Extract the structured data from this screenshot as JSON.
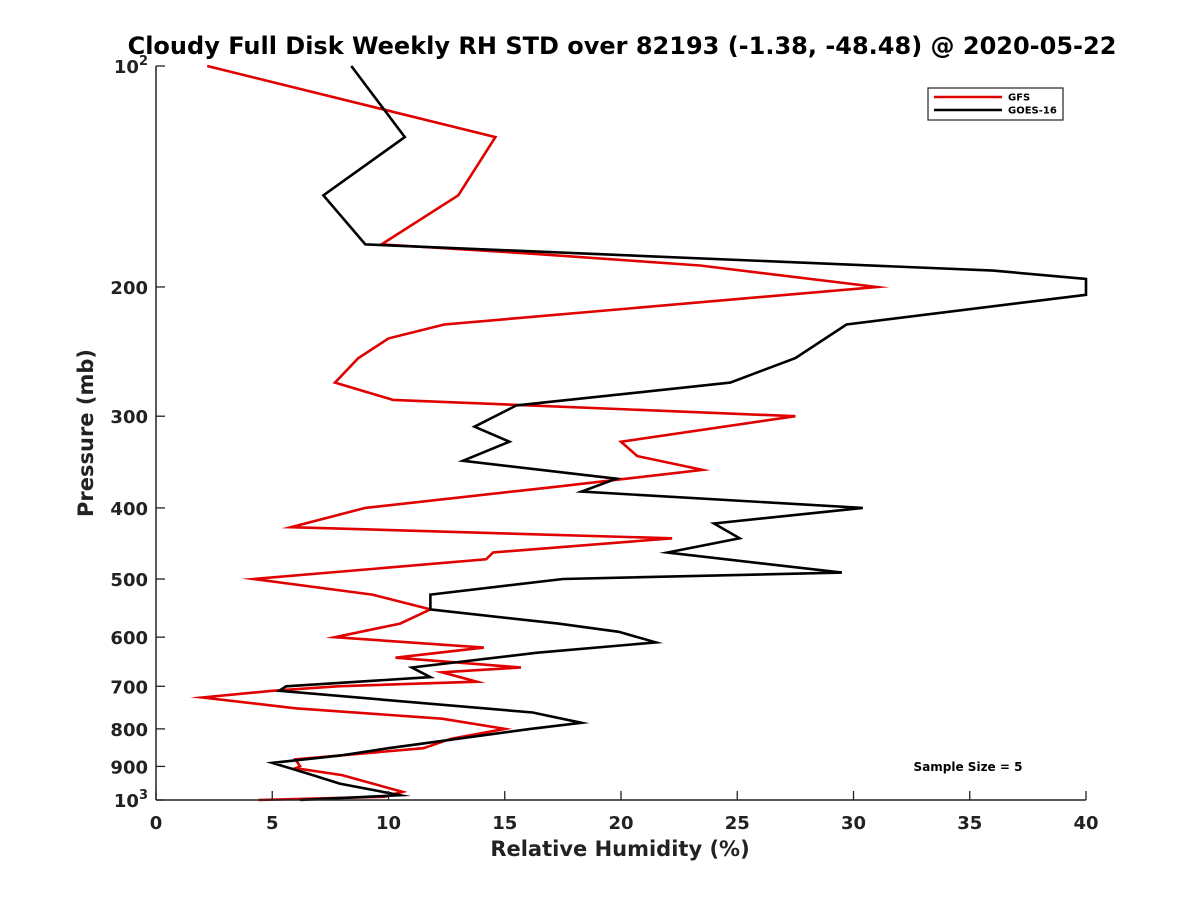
{
  "chart_data": {
    "type": "line",
    "title": "Cloudy Full Disk Weekly RH STD over 82193 (-1.38, -48.48) @ 2020-05-22",
    "xlabel": "Relative Humidity (%)",
    "ylabel": "Pressure (mb)",
    "xlim": [
      0,
      40
    ],
    "ylim": [
      100,
      1000
    ],
    "yscale": "log",
    "y_reversed": true,
    "grid": false,
    "legend_position": "top-right",
    "x_ticks": [
      "0",
      "5",
      "10",
      "15",
      "20",
      "25",
      "30",
      "35",
      "40"
    ],
    "y_ticks": [
      {
        "value": 100,
        "base": "10",
        "exp": "2"
      },
      {
        "value": 200,
        "label": "200"
      },
      {
        "value": 300,
        "label": "300"
      },
      {
        "value": 400,
        "label": "400"
      },
      {
        "value": 500,
        "label": "500"
      },
      {
        "value": 600,
        "label": "600"
      },
      {
        "value": 700,
        "label": "700"
      },
      {
        "value": 800,
        "label": "800"
      },
      {
        "value": 900,
        "label": "900"
      },
      {
        "value": 1000,
        "base": "10",
        "exp": "3"
      }
    ],
    "annotation": "Sample Size = 5",
    "series": [
      {
        "name": "GFS",
        "color": "#e00000",
        "points": [
          [
            2.2,
            100
          ],
          [
            14.6,
            125
          ],
          [
            13.0,
            150
          ],
          [
            9.7,
            175
          ],
          [
            16.0,
            180
          ],
          [
            23.4,
            187
          ],
          [
            31.0,
            200
          ],
          [
            12.4,
            225
          ],
          [
            10.0,
            235
          ],
          [
            8.7,
            250
          ],
          [
            7.7,
            270
          ],
          [
            10.2,
            285
          ],
          [
            27.5,
            300
          ],
          [
            20.0,
            325
          ],
          [
            20.7,
            340
          ],
          [
            23.5,
            355
          ],
          [
            17.0,
            375
          ],
          [
            9.0,
            400
          ],
          [
            5.8,
            425
          ],
          [
            22.2,
            440
          ],
          [
            14.5,
            460
          ],
          [
            14.2,
            470
          ],
          [
            4.2,
            500
          ],
          [
            9.3,
            525
          ],
          [
            11.8,
            550
          ],
          [
            10.5,
            575
          ],
          [
            7.7,
            600
          ],
          [
            14.1,
            620
          ],
          [
            10.3,
            640
          ],
          [
            15.7,
            660
          ],
          [
            12.3,
            670
          ],
          [
            13.8,
            690
          ],
          [
            7.8,
            700
          ],
          [
            5.0,
            710
          ],
          [
            2.0,
            725
          ],
          [
            6.0,
            750
          ],
          [
            12.3,
            775
          ],
          [
            15.0,
            800
          ],
          [
            12.7,
            825
          ],
          [
            11.5,
            850
          ],
          [
            6.0,
            880
          ],
          [
            6.2,
            900
          ],
          [
            6.0,
            905
          ],
          [
            8.0,
            925
          ],
          [
            10.6,
            975
          ],
          [
            9.8,
            990
          ],
          [
            4.4,
            1000
          ]
        ]
      },
      {
        "name": "GOES-16",
        "color": "#000000",
        "points": [
          [
            8.4,
            100
          ],
          [
            10.7,
            125
          ],
          [
            7.2,
            150
          ],
          [
            9.0,
            175
          ],
          [
            36.0,
            190
          ],
          [
            40.0,
            195
          ],
          [
            40.0,
            205
          ],
          [
            29.7,
            225
          ],
          [
            27.5,
            250
          ],
          [
            24.7,
            270
          ],
          [
            15.5,
            290
          ],
          [
            13.7,
            310
          ],
          [
            15.2,
            325
          ],
          [
            13.2,
            345
          ],
          [
            19.8,
            365
          ],
          [
            18.8,
            375
          ],
          [
            18.3,
            380
          ],
          [
            30.4,
            400
          ],
          [
            24.0,
            420
          ],
          [
            25.1,
            440
          ],
          [
            22.0,
            460
          ],
          [
            29.5,
            490
          ],
          [
            17.5,
            500
          ],
          [
            11.8,
            525
          ],
          [
            11.8,
            550
          ],
          [
            17.3,
            575
          ],
          [
            19.9,
            590
          ],
          [
            21.5,
            610
          ],
          [
            16.4,
            630
          ],
          [
            11.0,
            660
          ],
          [
            11.8,
            680
          ],
          [
            5.6,
            700
          ],
          [
            5.3,
            710
          ],
          [
            16.2,
            760
          ],
          [
            18.3,
            785
          ],
          [
            16.1,
            800
          ],
          [
            10.0,
            850
          ],
          [
            7.9,
            870
          ],
          [
            5.0,
            890
          ],
          [
            6.5,
            920
          ],
          [
            7.9,
            950
          ],
          [
            10.5,
            985
          ],
          [
            6.2,
            1000
          ]
        ]
      }
    ]
  }
}
